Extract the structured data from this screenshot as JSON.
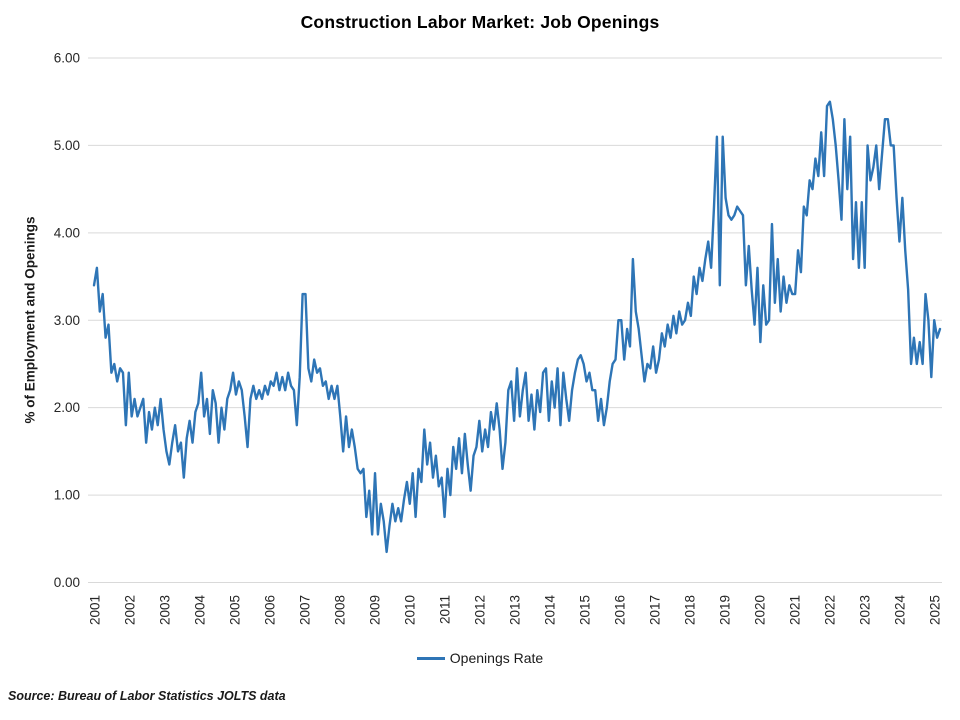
{
  "title": "Construction Labor Market: Job Openings",
  "source_note": "Source: Bureau of Labor Statistics JOLTS data",
  "legend": {
    "series_label": "Openings Rate"
  },
  "colors": {
    "line": "#2E75B6",
    "gridline": "#D9D9D9",
    "tick_text": "#262626",
    "title_text": "#000000"
  },
  "chart_data": {
    "type": "line",
    "title": "Construction Labor Market: Job Openings",
    "xlabel": "",
    "ylabel": "% of Employment and Openings",
    "ylim": [
      0,
      6
    ],
    "y_tick_labels": [
      "0.00",
      "1.00",
      "2.00",
      "3.00",
      "4.00",
      "5.00",
      "6.00"
    ],
    "x_tick_labels": [
      "2001",
      "2002",
      "2003",
      "2004",
      "2005",
      "2006",
      "2007",
      "2008",
      "2009",
      "2010",
      "2011",
      "2012",
      "2013",
      "2014",
      "2015",
      "2016",
      "2017",
      "2018",
      "2019",
      "2020",
      "2021",
      "2022",
      "2023",
      "2024",
      "2025"
    ],
    "frequency": "monthly",
    "x_start": "2001-01",
    "x_end": "2025-05",
    "grid": "horizontal",
    "legend_position": "bottom",
    "series": [
      {
        "name": "Openings Rate",
        "values": [
          3.4,
          3.6,
          3.1,
          3.3,
          2.8,
          2.95,
          2.4,
          2.5,
          2.3,
          2.45,
          2.4,
          1.8,
          2.4,
          1.9,
          2.1,
          1.9,
          2.0,
          2.1,
          1.6,
          1.95,
          1.75,
          2.0,
          1.8,
          2.1,
          1.75,
          1.5,
          1.35,
          1.6,
          1.8,
          1.5,
          1.6,
          1.2,
          1.65,
          1.85,
          1.6,
          1.95,
          2.05,
          2.4,
          1.9,
          2.1,
          1.7,
          2.2,
          2.05,
          1.6,
          2.0,
          1.75,
          2.1,
          2.2,
          2.4,
          2.15,
          2.3,
          2.2,
          1.9,
          1.55,
          2.1,
          2.25,
          2.1,
          2.2,
          2.1,
          2.25,
          2.15,
          2.3,
          2.25,
          2.4,
          2.2,
          2.35,
          2.2,
          2.4,
          2.25,
          2.2,
          1.8,
          2.35,
          3.3,
          3.3,
          2.45,
          2.3,
          2.55,
          2.4,
          2.45,
          2.25,
          2.3,
          2.1,
          2.25,
          2.1,
          2.25,
          1.9,
          1.5,
          1.9,
          1.55,
          1.75,
          1.55,
          1.3,
          1.25,
          1.3,
          0.75,
          1.05,
          0.55,
          1.25,
          0.55,
          0.9,
          0.7,
          0.35,
          0.65,
          0.9,
          0.7,
          0.85,
          0.7,
          0.95,
          1.15,
          0.9,
          1.25,
          0.75,
          1.3,
          1.15,
          1.75,
          1.35,
          1.6,
          1.2,
          1.45,
          1.1,
          1.2,
          0.75,
          1.3,
          1.0,
          1.55,
          1.3,
          1.65,
          1.25,
          1.7,
          1.35,
          1.05,
          1.45,
          1.55,
          1.85,
          1.5,
          1.75,
          1.55,
          1.95,
          1.75,
          2.05,
          1.75,
          1.3,
          1.6,
          2.2,
          2.3,
          1.85,
          2.45,
          1.9,
          2.2,
          2.4,
          1.85,
          2.15,
          1.75,
          2.2,
          1.95,
          2.4,
          2.45,
          1.85,
          2.3,
          2.0,
          2.45,
          1.8,
          2.4,
          2.1,
          1.85,
          2.2,
          2.4,
          2.55,
          2.6,
          2.5,
          2.3,
          2.4,
          2.2,
          2.2,
          1.85,
          2.1,
          1.8,
          2.0,
          2.3,
          2.5,
          2.55,
          3.0,
          3.0,
          2.55,
          2.9,
          2.7,
          3.7,
          3.1,
          2.9,
          2.6,
          2.3,
          2.5,
          2.45,
          2.7,
          2.4,
          2.55,
          2.85,
          2.7,
          2.95,
          2.8,
          3.05,
          2.85,
          3.1,
          2.95,
          3.0,
          3.2,
          3.05,
          3.5,
          3.3,
          3.6,
          3.45,
          3.7,
          3.9,
          3.6,
          4.3,
          5.1,
          3.4,
          5.1,
          4.4,
          4.2,
          4.15,
          4.2,
          4.3,
          4.25,
          4.2,
          3.4,
          3.85,
          3.35,
          2.95,
          3.6,
          2.75,
          3.4,
          2.95,
          3.0,
          4.1,
          3.2,
          3.7,
          3.1,
          3.5,
          3.2,
          3.4,
          3.3,
          3.3,
          3.8,
          3.55,
          4.3,
          4.2,
          4.6,
          4.5,
          4.85,
          4.65,
          5.15,
          4.65,
          5.45,
          5.5,
          5.3,
          5.0,
          4.6,
          4.15,
          5.3,
          4.5,
          5.1,
          3.7,
          4.35,
          3.6,
          4.35,
          3.6,
          5.0,
          4.6,
          4.75,
          5.0,
          4.5,
          4.9,
          5.3,
          5.3,
          5.0,
          5.0,
          4.4,
          3.9,
          4.4,
          3.8,
          3.35,
          2.5,
          2.8,
          2.5,
          2.75,
          2.5,
          3.3,
          3.0,
          2.35,
          3.0,
          2.8,
          2.9
        ]
      }
    ]
  }
}
